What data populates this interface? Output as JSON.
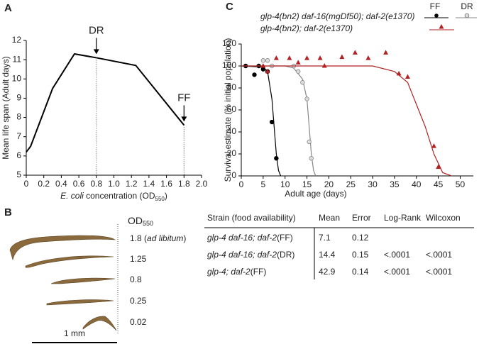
{
  "panel_labels": [
    "A",
    "B",
    "C"
  ],
  "chart_data": [
    {
      "type": "line",
      "color": "#000000",
      "y_label": "Mean life span (Adult days)",
      "x_label": {
        "italic": "E. coli",
        "text": " concentration (OD",
        "sub": "550",
        "end": ")"
      },
      "x": [
        0,
        0.05,
        0.3,
        0.55,
        0.8,
        1.25,
        1.8
      ],
      "values": [
        6.2,
        6.5,
        9.5,
        11.3,
        11.1,
        10.7,
        7.6
      ],
      "xlim": [
        0,
        2.0
      ],
      "xticks": [
        0,
        0.2,
        0.4,
        0.6,
        0.8,
        {
          "value": 1,
          "label": "1.0"
        },
        1.2,
        1.4,
        1.6,
        1.8,
        {
          "value": 2,
          "label": "2.0"
        }
      ],
      "ylim": [
        5,
        12
      ],
      "yticks": [
        5,
        6,
        7,
        8,
        9,
        10,
        11,
        12
      ],
      "annotations": [
        {
          "text": "DR",
          "x": 0.8
        },
        {
          "text": "FF",
          "x": 1.8
        }
      ]
    },
    {
      "type": "scatter",
      "x_label": "Adult age (days)",
      "y_label": "Survival estimate (% initial population)",
      "legend_headers": [
        "FF",
        "DR"
      ],
      "legend_rows": [
        "glp-4(bn2) daf-16(mgDf50); daf-2(e1370)",
        "glp-4(bn2); daf-2(e1370)"
      ],
      "xlim": [
        0,
        53
      ],
      "xticks": [
        0,
        5,
        10,
        15,
        20,
        25,
        30,
        35,
        40,
        45,
        50
      ],
      "ylim": [
        0,
        120
      ],
      "yticks": [
        0,
        20,
        40,
        60,
        80,
        100,
        120
      ],
      "series": [
        {
          "color": "#000000",
          "marker": "filled-circle",
          "x": [
            1,
            3,
            4,
            5,
            6,
            7,
            8
          ],
          "values": [
            100,
            92,
            100,
            97,
            95,
            49,
            16
          ],
          "fit_x": [
            0,
            5,
            6,
            7,
            7.5,
            8,
            8.5,
            9
          ],
          "fit_values": [
            100,
            99,
            95,
            70,
            45,
            20,
            5,
            0
          ]
        },
        {
          "color": "#888888",
          "marker": "open-circle",
          "x": [
            5,
            6,
            7,
            12,
            13,
            14,
            15,
            15.5,
            16
          ],
          "values": [
            105,
            105,
            100,
            100,
            95,
            85,
            70,
            31,
            16
          ],
          "fit_x": [
            0,
            10,
            12,
            14,
            15,
            15.5,
            16,
            16.5,
            17
          ],
          "fit_values": [
            100,
            100,
            98,
            88,
            70,
            45,
            20,
            5,
            0
          ]
        },
        {
          "color": "#b22222",
          "marker": "triangle",
          "x": [
            5,
            6,
            8,
            11,
            13,
            15,
            18,
            19,
            23,
            26,
            29,
            33,
            36,
            38,
            44,
            45
          ],
          "values": [
            100,
            95,
            107,
            107,
            103,
            107,
            107,
            100,
            108,
            112,
            107,
            112,
            93,
            90,
            27,
            8
          ],
          "fit_x": [
            0,
            30,
            35,
            38,
            40,
            42,
            44,
            46,
            48
          ],
          "fit_values": [
            100,
            100,
            95,
            85,
            65,
            45,
            20,
            3,
            0
          ]
        }
      ]
    }
  ],
  "worms": {
    "header": "OD",
    "header_sub": "550",
    "labels": [
      "1.8 (",
      "1.25",
      "0.8",
      "0.25",
      "0.02"
    ],
    "label_italic": "ad libitum",
    "label_end": ")",
    "scale": "1 mm"
  },
  "table": {
    "header": [
      "Strain (food availability)",
      "Mean",
      "Error",
      "Log-Rank",
      "Wilcoxon"
    ],
    "rows": [
      {
        "strain": "glp-4 daf-16; daf-2",
        "food": "(FF)",
        "mean": "7.1",
        "error": "0.12"
      },
      {
        "strain": "glp-4 daf-16; daf-2",
        "food": "(DR)",
        "mean": "14.4",
        "error": "0.15",
        "log_rank": "<.0001",
        "wilcoxon": "<.0001"
      },
      {
        "strain": "glp-4; daf-2",
        "food": "(FF)",
        "mean": "42.9",
        "error": "0.14",
        "log_rank": "<.0001",
        "wilcoxon": "<.0001"
      }
    ]
  }
}
